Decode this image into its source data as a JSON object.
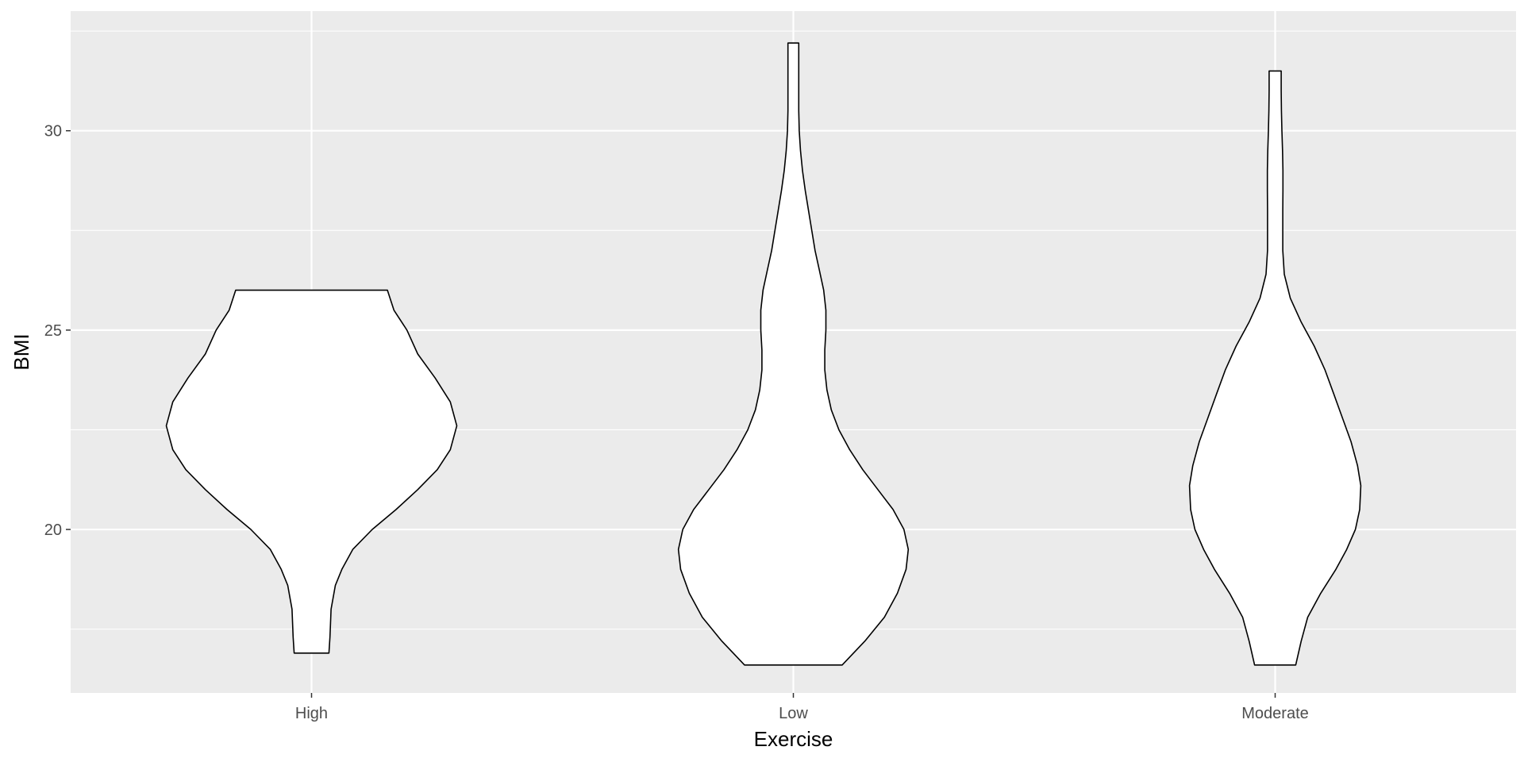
{
  "chart_data": {
    "type": "violin",
    "xlabel": "Exercise",
    "ylabel": "BMI",
    "categories": [
      "High",
      "Low",
      "Moderate"
    ],
    "ylim": [
      15.9,
      33.0
    ],
    "y_ticks": [
      20,
      25,
      30
    ],
    "y_minor_ticks": [
      17.5,
      22.5,
      27.5,
      32.5
    ],
    "grid": true,
    "colors": {
      "panel": "#ebebeb",
      "grid": "#ffffff",
      "violin_fill": "#ffffff",
      "violin_stroke": "#000000"
    },
    "violins": [
      {
        "category": "High",
        "y_min": 16.9,
        "y_max": 26.0,
        "density_profile": [
          {
            "y": 16.9,
            "half_width": 0.08
          },
          {
            "y": 17.3,
            "half_width": 0.085
          },
          {
            "y": 18.0,
            "half_width": 0.09
          },
          {
            "y": 18.6,
            "half_width": 0.11
          },
          {
            "y": 19.0,
            "half_width": 0.14
          },
          {
            "y": 19.5,
            "half_width": 0.19
          },
          {
            "y": 20.0,
            "half_width": 0.28
          },
          {
            "y": 20.5,
            "half_width": 0.39
          },
          {
            "y": 21.0,
            "half_width": 0.49
          },
          {
            "y": 21.5,
            "half_width": 0.58
          },
          {
            "y": 22.0,
            "half_width": 0.64
          },
          {
            "y": 22.6,
            "half_width": 0.67
          },
          {
            "y": 23.2,
            "half_width": 0.64
          },
          {
            "y": 23.8,
            "half_width": 0.57
          },
          {
            "y": 24.4,
            "half_width": 0.49
          },
          {
            "y": 25.0,
            "half_width": 0.44
          },
          {
            "y": 25.5,
            "half_width": 0.38
          },
          {
            "y": 26.0,
            "half_width": 0.35
          }
        ]
      },
      {
        "category": "Low",
        "y_min": 16.6,
        "y_max": 32.2,
        "density_profile": [
          {
            "y": 16.6,
            "half_width": 0.225
          },
          {
            "y": 17.2,
            "half_width": 0.33
          },
          {
            "y": 17.8,
            "half_width": 0.42
          },
          {
            "y": 18.4,
            "half_width": 0.48
          },
          {
            "y": 19.0,
            "half_width": 0.52
          },
          {
            "y": 19.5,
            "half_width": 0.53
          },
          {
            "y": 20.0,
            "half_width": 0.51
          },
          {
            "y": 20.5,
            "half_width": 0.46
          },
          {
            "y": 21.0,
            "half_width": 0.39
          },
          {
            "y": 21.5,
            "half_width": 0.32
          },
          {
            "y": 22.0,
            "half_width": 0.26
          },
          {
            "y": 22.5,
            "half_width": 0.21
          },
          {
            "y": 23.0,
            "half_width": 0.175
          },
          {
            "y": 23.5,
            "half_width": 0.155
          },
          {
            "y": 24.0,
            "half_width": 0.145
          },
          {
            "y": 24.5,
            "half_width": 0.145
          },
          {
            "y": 25.0,
            "half_width": 0.15
          },
          {
            "y": 25.5,
            "half_width": 0.15
          },
          {
            "y": 26.0,
            "half_width": 0.14
          },
          {
            "y": 26.5,
            "half_width": 0.12
          },
          {
            "y": 27.0,
            "half_width": 0.1
          },
          {
            "y": 27.5,
            "half_width": 0.085
          },
          {
            "y": 28.0,
            "half_width": 0.07
          },
          {
            "y": 28.5,
            "half_width": 0.055
          },
          {
            "y": 29.0,
            "half_width": 0.042
          },
          {
            "y": 29.5,
            "half_width": 0.033
          },
          {
            "y": 30.0,
            "half_width": 0.027
          },
          {
            "y": 30.5,
            "half_width": 0.025
          },
          {
            "y": 31.0,
            "half_width": 0.025
          },
          {
            "y": 32.2,
            "half_width": 0.025
          }
        ]
      },
      {
        "category": "Moderate",
        "y_min": 16.6,
        "y_max": 31.5,
        "density_profile": [
          {
            "y": 16.6,
            "half_width": 0.095
          },
          {
            "y": 17.2,
            "half_width": 0.12
          },
          {
            "y": 17.8,
            "half_width": 0.15
          },
          {
            "y": 18.4,
            "half_width": 0.21
          },
          {
            "y": 19.0,
            "half_width": 0.28
          },
          {
            "y": 19.5,
            "half_width": 0.33
          },
          {
            "y": 20.0,
            "half_width": 0.37
          },
          {
            "y": 20.5,
            "half_width": 0.39
          },
          {
            "y": 21.1,
            "half_width": 0.395
          },
          {
            "y": 21.6,
            "half_width": 0.38
          },
          {
            "y": 22.2,
            "half_width": 0.35
          },
          {
            "y": 22.8,
            "half_width": 0.31
          },
          {
            "y": 23.4,
            "half_width": 0.27
          },
          {
            "y": 24.0,
            "half_width": 0.23
          },
          {
            "y": 24.6,
            "half_width": 0.18
          },
          {
            "y": 25.2,
            "half_width": 0.12
          },
          {
            "y": 25.8,
            "half_width": 0.07
          },
          {
            "y": 26.4,
            "half_width": 0.042
          },
          {
            "y": 27.0,
            "half_width": 0.035
          },
          {
            "y": 27.5,
            "half_width": 0.035
          },
          {
            "y": 28.0,
            "half_width": 0.035
          },
          {
            "y": 28.5,
            "half_width": 0.036
          },
          {
            "y": 29.0,
            "half_width": 0.036
          },
          {
            "y": 29.5,
            "half_width": 0.034
          },
          {
            "y": 30.0,
            "half_width": 0.031
          },
          {
            "y": 30.5,
            "half_width": 0.029
          },
          {
            "y": 31.0,
            "half_width": 0.028
          },
          {
            "y": 31.5,
            "half_width": 0.028
          }
        ]
      }
    ]
  }
}
